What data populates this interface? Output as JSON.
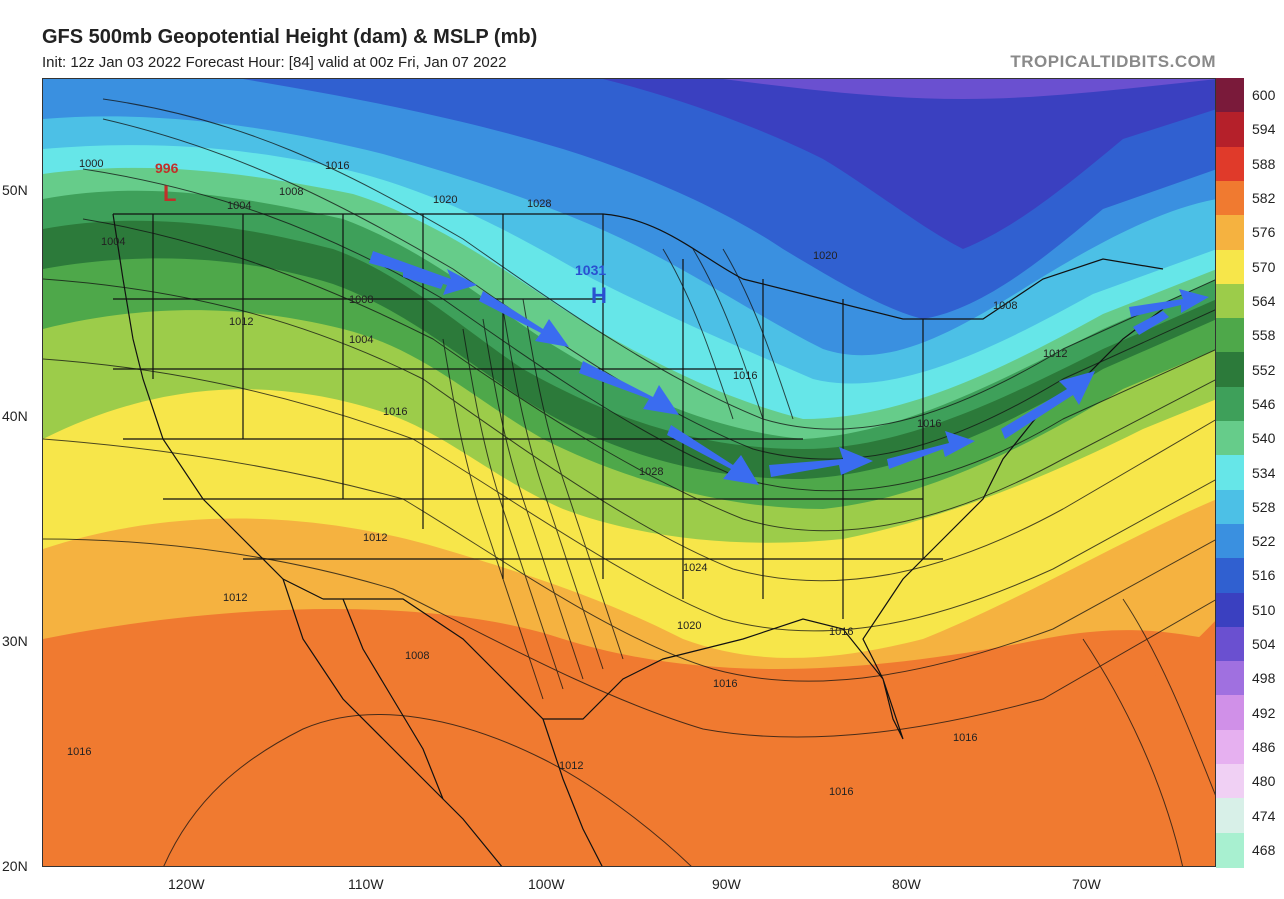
{
  "header": {
    "title": "GFS 500mb Geopotential Height (dam) & MSLP (mb)",
    "subtitle": "Init: 12z Jan 03 2022   Forecast Hour: [84]   valid at 00z Fri, Jan 07 2022",
    "source": "TROPICALTIDBITS.COM"
  },
  "axes": {
    "lat_labels": [
      "50N",
      "40N",
      "30N",
      "20N"
    ],
    "lon_labels": [
      "120W",
      "110W",
      "100W",
      "90W",
      "80W",
      "70W"
    ]
  },
  "colorbar": {
    "labels": [
      "600",
      "594",
      "588",
      "582",
      "576",
      "570",
      "564",
      "558",
      "552",
      "546",
      "540",
      "534",
      "528",
      "522",
      "516",
      "510",
      "504",
      "498",
      "492",
      "486",
      "480",
      "474",
      "468"
    ],
    "colors": [
      "#7a1a3a",
      "#b5202a",
      "#e03a2a",
      "#f07a30",
      "#f5b240",
      "#f7e64a",
      "#9ccc4a",
      "#4ea84a",
      "#2c7a3a",
      "#3ea05a",
      "#66cc8a",
      "#66e6e8",
      "#4cc0e6",
      "#3a90e0",
      "#3060d0",
      "#3a40c0",
      "#6a50d0",
      "#a070e0",
      "#d090e8",
      "#e6b0f0",
      "#f0d0f4",
      "#d8f0e8",
      "#a8f0d0"
    ]
  },
  "pressure_systems": [
    {
      "type": "L",
      "value": "996",
      "color": "#c0302a"
    },
    {
      "type": "H",
      "value": "1031",
      "color": "#2a50d0"
    }
  ],
  "isobar_labels": [
    "1000",
    "1004",
    "1008",
    "1016",
    "1020",
    "1028",
    "1004",
    "1012",
    "1008",
    "1016",
    "1004",
    "1012",
    "1020",
    "1028",
    "1008",
    "1012",
    "1016",
    "1016",
    "1008",
    "1024",
    "1020",
    "1016",
    "1016",
    "1012",
    "1016",
    "1016",
    "1012",
    "1016"
  ],
  "annotations": {
    "jet_arrow_color": "#3a6cf0",
    "arrow_count": 10
  }
}
